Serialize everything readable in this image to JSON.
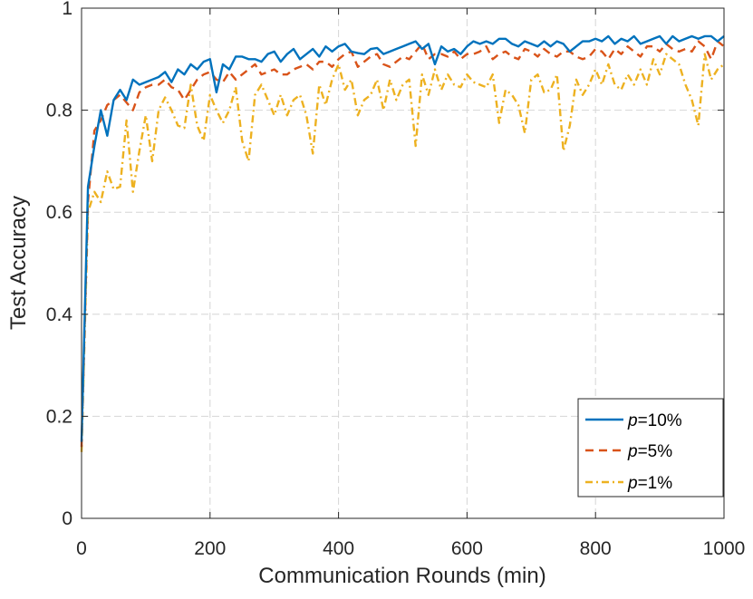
{
  "chart_data": {
    "type": "line",
    "title": "",
    "xlabel": "Communication Rounds (min)",
    "ylabel": "Test Accuracy",
    "xlim": [
      0,
      1000
    ],
    "ylim": [
      0,
      1
    ],
    "xticks": [
      0,
      200,
      400,
      600,
      800,
      1000
    ],
    "yticks": [
      0,
      0.2,
      0.4,
      0.6,
      0.8,
      1
    ],
    "xtick_labels": [
      "0",
      "200",
      "400",
      "600",
      "800",
      "1000"
    ],
    "ytick_labels": [
      "0",
      "0.2",
      "0.4",
      "0.6",
      "0.8",
      "1"
    ],
    "grid": true,
    "legend_position": "bottom-right",
    "series": [
      {
        "name": "p=10%",
        "name_var": "p",
        "name_rest": "=10%",
        "color": "#0072BD",
        "dash": "solid",
        "x": [
          0,
          10,
          20,
          30,
          40,
          50,
          60,
          70,
          80,
          90,
          100,
          110,
          120,
          130,
          140,
          150,
          160,
          170,
          180,
          190,
          200,
          210,
          220,
          230,
          240,
          250,
          260,
          270,
          280,
          290,
          300,
          310,
          320,
          330,
          340,
          350,
          360,
          370,
          380,
          390,
          400,
          410,
          420,
          430,
          440,
          450,
          460,
          470,
          480,
          490,
          500,
          510,
          520,
          530,
          540,
          550,
          560,
          570,
          580,
          590,
          600,
          610,
          620,
          630,
          640,
          650,
          660,
          670,
          680,
          690,
          700,
          710,
          720,
          730,
          740,
          750,
          760,
          770,
          780,
          790,
          800,
          810,
          820,
          830,
          840,
          850,
          860,
          870,
          880,
          890,
          900,
          910,
          920,
          930,
          940,
          950,
          960,
          970,
          980,
          990,
          1000
        ],
        "values": [
          0.15,
          0.65,
          0.73,
          0.8,
          0.75,
          0.82,
          0.84,
          0.82,
          0.86,
          0.85,
          0.855,
          0.86,
          0.865,
          0.875,
          0.855,
          0.88,
          0.87,
          0.89,
          0.88,
          0.895,
          0.9,
          0.835,
          0.89,
          0.88,
          0.905,
          0.905,
          0.9,
          0.9,
          0.895,
          0.91,
          0.915,
          0.895,
          0.91,
          0.92,
          0.9,
          0.91,
          0.92,
          0.905,
          0.925,
          0.915,
          0.925,
          0.93,
          0.915,
          0.912,
          0.91,
          0.92,
          0.922,
          0.91,
          0.915,
          0.92,
          0.925,
          0.93,
          0.935,
          0.92,
          0.93,
          0.89,
          0.925,
          0.915,
          0.92,
          0.91,
          0.925,
          0.935,
          0.93,
          0.935,
          0.93,
          0.94,
          0.94,
          0.93,
          0.925,
          0.935,
          0.93,
          0.925,
          0.935,
          0.925,
          0.935,
          0.93,
          0.915,
          0.925,
          0.935,
          0.935,
          0.94,
          0.935,
          0.945,
          0.93,
          0.94,
          0.935,
          0.945,
          0.93,
          0.935,
          0.94,
          0.945,
          0.93,
          0.945,
          0.935,
          0.94,
          0.945,
          0.94,
          0.945,
          0.945,
          0.935,
          0.945
        ]
      },
      {
        "name": "p=5%",
        "name_var": "p",
        "name_rest": "=5%",
        "color": "#D95319",
        "dash": "dashed",
        "x": [
          0,
          10,
          20,
          30,
          40,
          50,
          60,
          70,
          80,
          90,
          100,
          110,
          120,
          130,
          140,
          150,
          160,
          170,
          180,
          190,
          200,
          210,
          220,
          230,
          240,
          250,
          260,
          270,
          280,
          290,
          300,
          310,
          320,
          330,
          340,
          350,
          360,
          370,
          380,
          390,
          400,
          410,
          420,
          430,
          440,
          450,
          460,
          470,
          480,
          490,
          500,
          510,
          520,
          530,
          540,
          550,
          560,
          570,
          580,
          590,
          600,
          610,
          620,
          630,
          640,
          650,
          660,
          670,
          680,
          690,
          700,
          710,
          720,
          730,
          740,
          750,
          760,
          770,
          780,
          790,
          800,
          810,
          820,
          830,
          840,
          850,
          860,
          870,
          880,
          890,
          900,
          910,
          920,
          930,
          940,
          950,
          960,
          970,
          980,
          990,
          1000
        ],
        "values": [
          0.14,
          0.62,
          0.76,
          0.78,
          0.81,
          0.82,
          0.83,
          0.815,
          0.8,
          0.835,
          0.845,
          0.85,
          0.85,
          0.86,
          0.845,
          0.84,
          0.82,
          0.84,
          0.86,
          0.87,
          0.875,
          0.86,
          0.855,
          0.875,
          0.86,
          0.87,
          0.88,
          0.89,
          0.87,
          0.875,
          0.88,
          0.87,
          0.87,
          0.88,
          0.885,
          0.89,
          0.88,
          0.895,
          0.895,
          0.885,
          0.9,
          0.91,
          0.915,
          0.885,
          0.895,
          0.905,
          0.91,
          0.89,
          0.885,
          0.895,
          0.905,
          0.9,
          0.915,
          0.93,
          0.9,
          0.91,
          0.91,
          0.905,
          0.915,
          0.9,
          0.91,
          0.91,
          0.915,
          0.925,
          0.9,
          0.91,
          0.915,
          0.905,
          0.9,
          0.92,
          0.915,
          0.905,
          0.92,
          0.91,
          0.905,
          0.915,
          0.915,
          0.905,
          0.9,
          0.905,
          0.92,
          0.915,
          0.9,
          0.92,
          0.91,
          0.925,
          0.915,
          0.905,
          0.925,
          0.925,
          0.915,
          0.93,
          0.92,
          0.915,
          0.92,
          0.915,
          0.935,
          0.925,
          0.9,
          0.935,
          0.925
        ]
      },
      {
        "name": "p=1%",
        "name_var": "p",
        "name_rest": "=1%",
        "color": "#EDB120",
        "dash": "dashdot",
        "x": [
          0,
          10,
          20,
          30,
          40,
          50,
          60,
          70,
          80,
          90,
          100,
          110,
          120,
          130,
          140,
          150,
          160,
          170,
          180,
          190,
          200,
          210,
          220,
          230,
          240,
          250,
          260,
          270,
          280,
          290,
          300,
          310,
          320,
          330,
          340,
          350,
          360,
          370,
          380,
          390,
          400,
          410,
          420,
          430,
          440,
          450,
          460,
          470,
          480,
          490,
          500,
          510,
          520,
          530,
          540,
          550,
          560,
          570,
          580,
          590,
          600,
          610,
          620,
          630,
          640,
          650,
          660,
          670,
          680,
          690,
          700,
          710,
          720,
          730,
          740,
          750,
          760,
          770,
          780,
          790,
          800,
          810,
          820,
          830,
          840,
          850,
          860,
          870,
          880,
          890,
          900,
          910,
          920,
          930,
          940,
          950,
          960,
          970,
          980,
          990,
          1000
        ],
        "values": [
          0.13,
          0.6,
          0.64,
          0.62,
          0.68,
          0.645,
          0.65,
          0.78,
          0.64,
          0.72,
          0.79,
          0.7,
          0.8,
          0.825,
          0.8,
          0.77,
          0.765,
          0.85,
          0.77,
          0.74,
          0.83,
          0.8,
          0.775,
          0.8,
          0.845,
          0.74,
          0.7,
          0.83,
          0.85,
          0.82,
          0.79,
          0.83,
          0.79,
          0.82,
          0.83,
          0.79,
          0.715,
          0.85,
          0.81,
          0.86,
          0.89,
          0.84,
          0.86,
          0.79,
          0.82,
          0.83,
          0.86,
          0.8,
          0.86,
          0.82,
          0.85,
          0.86,
          0.73,
          0.87,
          0.83,
          0.88,
          0.84,
          0.87,
          0.85,
          0.845,
          0.87,
          0.855,
          0.85,
          0.845,
          0.87,
          0.775,
          0.84,
          0.83,
          0.81,
          0.755,
          0.86,
          0.87,
          0.835,
          0.84,
          0.87,
          0.72,
          0.77,
          0.86,
          0.83,
          0.85,
          0.88,
          0.85,
          0.89,
          0.85,
          0.84,
          0.87,
          0.85,
          0.88,
          0.85,
          0.9,
          0.87,
          0.91,
          0.9,
          0.89,
          0.85,
          0.82,
          0.77,
          0.91,
          0.86,
          0.88,
          0.89
        ]
      }
    ]
  }
}
